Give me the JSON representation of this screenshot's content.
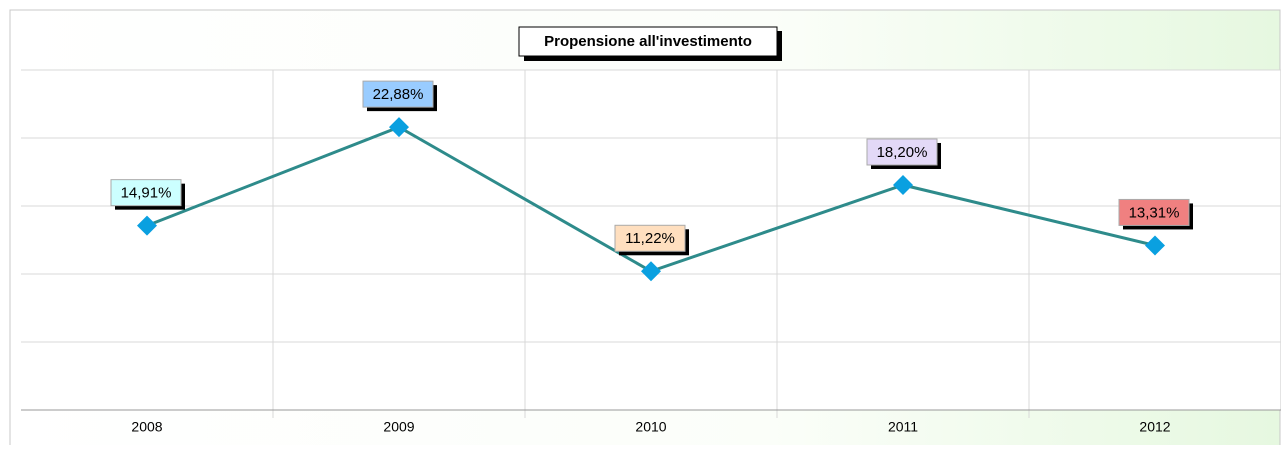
{
  "chart_data": {
    "type": "line",
    "title": "Propensione all'investimento",
    "categories": [
      "2008",
      "2009",
      "2010",
      "2011",
      "2012"
    ],
    "series": [
      {
        "color": "#2e8b8b",
        "marker_color": "#0aa0e0",
        "values": [
          14.91,
          22.88,
          11.22,
          18.2,
          13.31
        ],
        "value_labels": [
          "14,91%",
          "22,88%",
          "11,22%",
          "18,20%",
          "13,31%"
        ],
        "label_colors": [
          "#ccffff",
          "#99ccff",
          "#ffdfbf",
          "#e3d9f7",
          "#f08080"
        ]
      }
    ],
    "ylim": [
      0,
      27.5
    ],
    "yticks": [
      0,
      5.5,
      11,
      16.5,
      22,
      27.5
    ],
    "grid": true
  }
}
